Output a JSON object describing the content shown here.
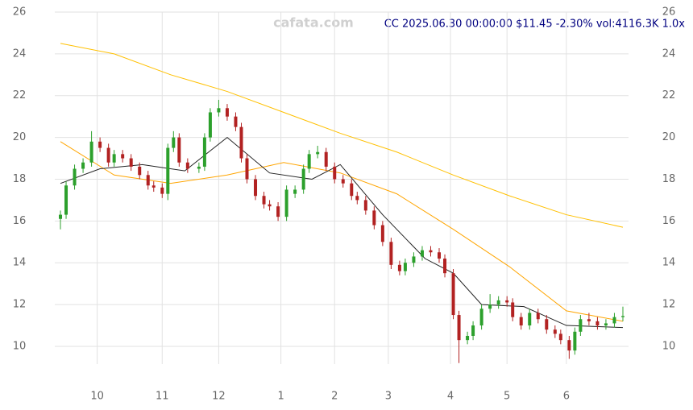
{
  "chart_data": {
    "type": "candlestick",
    "title": "CC 2025.06.30 00:00:00 $11.45 -2.30% vol:4116.3K 1.0x",
    "watermark": "cafata.com",
    "x": [
      1,
      3,
      6,
      9,
      12,
      15,
      18,
      20,
      23,
      26,
      29,
      32,
      34,
      37,
      39,
      41,
      43,
      46,
      50,
      52,
      54,
      57,
      60,
      63,
      65,
      67,
      70,
      73,
      75,
      78,
      81,
      84,
      87,
      89,
      92,
      95,
      98,
      101,
      104,
      106,
      109,
      112,
      115,
      118,
      121,
      123,
      126,
      129,
      132,
      135,
      137,
      140,
      142,
      145,
      147,
      150,
      153,
      156,
      159,
      161,
      164,
      167,
      170,
      173,
      176,
      178,
      181,
      183,
      185,
      188,
      191,
      194,
      197,
      200
    ],
    "open": [
      16.1,
      16.3,
      17.7,
      18.5,
      18.8,
      19.8,
      19.5,
      18.8,
      19.2,
      19.0,
      18.6,
      18.2,
      17.7,
      17.6,
      17.3,
      19.5,
      20.0,
      18.8,
      18.5,
      18.6,
      20.0,
      21.2,
      21.4,
      21.0,
      20.5,
      19.0,
      18.0,
      17.2,
      16.8,
      16.7,
      16.2,
      17.3,
      17.5,
      18.5,
      19.2,
      19.3,
      18.6,
      18.0,
      17.8,
      17.2,
      17.0,
      16.5,
      15.8,
      15.0,
      13.9,
      13.6,
      14.0,
      14.3,
      14.6,
      14.5,
      14.2,
      13.5,
      11.5,
      10.3,
      10.5,
      11.0,
      11.8,
      12.0,
      12.2,
      12.1,
      11.4,
      11.0,
      11.6,
      11.3,
      10.8,
      10.6,
      10.3,
      9.8,
      10.7,
      11.3,
      11.2,
      11.0,
      11.1,
      11.4
    ],
    "high": [
      16.5,
      17.9,
      18.7,
      19.0,
      20.3,
      20.0,
      19.7,
      19.4,
      19.4,
      19.2,
      18.8,
      18.4,
      17.9,
      17.8,
      19.7,
      20.3,
      20.2,
      19.0,
      18.8,
      20.2,
      21.4,
      21.8,
      21.6,
      21.2,
      20.7,
      19.2,
      18.2,
      17.4,
      17.0,
      16.9,
      17.7,
      17.7,
      18.7,
      19.4,
      19.6,
      19.5,
      18.8,
      18.2,
      18.0,
      17.4,
      17.2,
      16.7,
      16.0,
      15.2,
      14.1,
      14.2,
      14.5,
      14.8,
      14.8,
      14.7,
      14.4,
      13.7,
      11.7,
      10.7,
      11.2,
      12.0,
      12.5,
      12.4,
      12.4,
      12.3,
      11.6,
      11.8,
      11.8,
      11.5,
      11.0,
      10.8,
      10.5,
      10.9,
      11.5,
      11.6,
      11.4,
      11.3,
      11.6,
      11.9
    ],
    "low": [
      15.6,
      16.1,
      17.5,
      18.3,
      18.6,
      19.3,
      18.6,
      18.6,
      18.8,
      18.4,
      18.0,
      17.5,
      17.4,
      17.1,
      17.0,
      19.3,
      18.6,
      18.3,
      18.3,
      18.4,
      19.8,
      21.0,
      20.8,
      20.3,
      18.8,
      17.8,
      17.0,
      16.6,
      16.5,
      16.0,
      16.0,
      17.1,
      17.3,
      18.3,
      19.0,
      18.4,
      17.8,
      17.6,
      17.0,
      16.8,
      16.3,
      15.6,
      14.8,
      13.7,
      13.4,
      13.4,
      13.8,
      14.1,
      14.3,
      14.0,
      13.3,
      11.3,
      9.2,
      10.1,
      10.3,
      10.8,
      11.6,
      11.8,
      11.9,
      11.2,
      10.8,
      10.8,
      11.1,
      10.6,
      10.4,
      10.1,
      9.4,
      9.6,
      10.5,
      11.0,
      10.8,
      10.8,
      10.9,
      11.2
    ],
    "close": [
      16.3,
      17.7,
      18.5,
      18.8,
      19.8,
      19.5,
      18.8,
      19.2,
      19.0,
      18.6,
      18.2,
      17.7,
      17.6,
      17.3,
      19.5,
      20.0,
      18.8,
      18.5,
      18.6,
      20.0,
      21.2,
      21.4,
      21.0,
      20.5,
      19.0,
      18.0,
      17.2,
      16.8,
      16.7,
      16.2,
      17.5,
      17.5,
      18.5,
      19.2,
      19.3,
      18.6,
      18.0,
      17.8,
      17.2,
      17.0,
      16.5,
      15.8,
      15.0,
      13.9,
      13.6,
      14.0,
      14.3,
      14.6,
      14.5,
      14.2,
      13.5,
      11.5,
      10.3,
      10.5,
      11.0,
      11.8,
      12.0,
      12.2,
      12.1,
      11.4,
      11.0,
      11.6,
      11.3,
      10.8,
      10.6,
      10.3,
      9.8,
      10.7,
      11.3,
      11.2,
      11.0,
      11.1,
      11.4,
      11.45
    ],
    "up_color": "#2ca02c",
    "down_color": "#b22222",
    "overlays": [
      {
        "color": "#ffc000",
        "x": [
          1,
          20,
          40,
          60,
          80,
          100,
          120,
          140,
          160,
          180,
          200
        ],
        "values": [
          24.5,
          24.0,
          23.0,
          22.2,
          21.2,
          20.2,
          19.3,
          18.2,
          17.2,
          16.3,
          15.7
        ]
      },
      {
        "color": "#ffa500",
        "x": [
          1,
          20,
          40,
          60,
          80,
          100,
          120,
          140,
          160,
          180,
          200
        ],
        "values": [
          19.8,
          18.2,
          17.8,
          18.2,
          18.8,
          18.3,
          17.3,
          15.6,
          13.8,
          11.7,
          11.2
        ]
      },
      {
        "color": "#222222",
        "x": [
          1,
          15,
          30,
          45,
          60,
          75,
          90,
          100,
          115,
          130,
          140,
          150,
          165,
          180,
          200
        ],
        "values": [
          17.8,
          18.5,
          18.7,
          18.4,
          20.0,
          18.3,
          18.0,
          18.7,
          16.3,
          14.2,
          13.5,
          12.0,
          11.9,
          11.0,
          10.9
        ]
      }
    ],
    "xlim": [
      -1,
      202
    ],
    "xticks": [
      {
        "value": 14,
        "label": "10"
      },
      {
        "value": 37,
        "label": "11"
      },
      {
        "value": 57,
        "label": "12"
      },
      {
        "value": 79,
        "label": "1"
      },
      {
        "value": 98,
        "label": "2"
      },
      {
        "value": 117,
        "label": "3"
      },
      {
        "value": 139,
        "label": "4"
      },
      {
        "value": 159,
        "label": "5"
      },
      {
        "value": 180,
        "label": "6"
      }
    ],
    "ylim": [
      9.15,
      26
    ],
    "yticks": [
      10,
      12,
      14,
      16,
      18,
      20,
      22,
      24,
      26
    ],
    "grid": true
  }
}
